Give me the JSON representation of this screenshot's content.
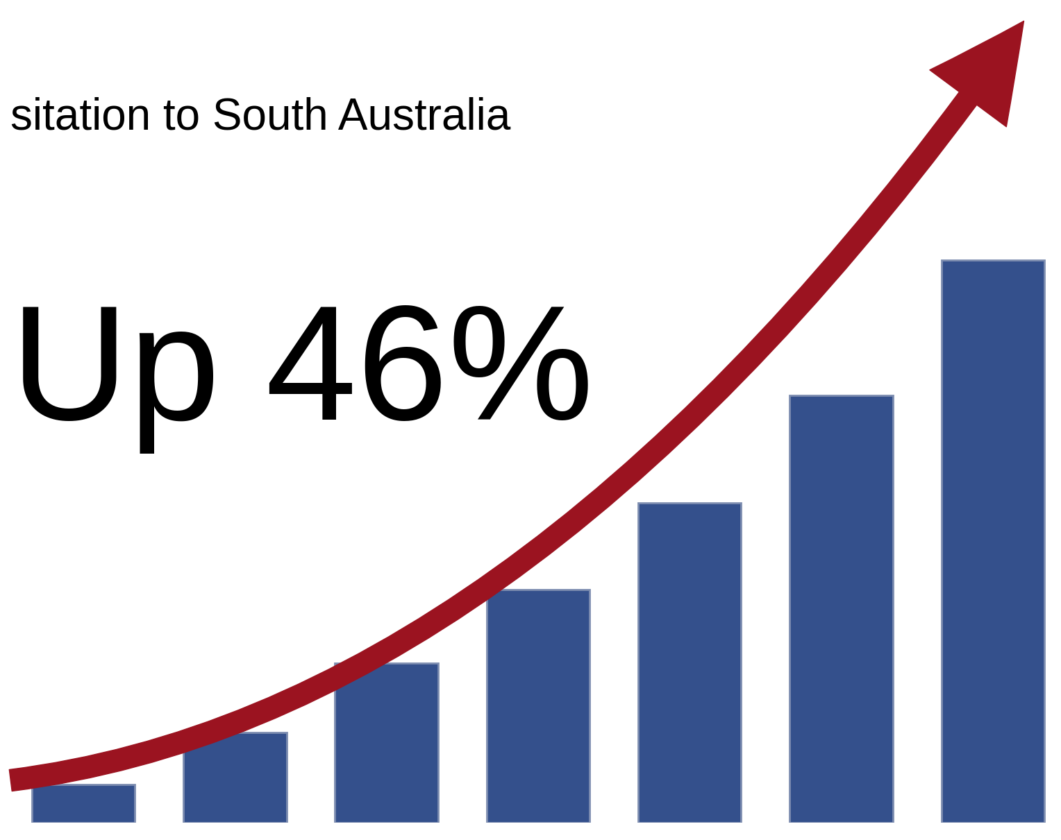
{
  "chart_data": {
    "type": "bar",
    "title": "sitation to South Australia",
    "annotations": [
      "Up 46%"
    ],
    "categories": [
      null,
      null,
      null,
      null,
      null,
      null,
      null
    ],
    "values": [
      56,
      133,
      235,
      343,
      471,
      629,
      829
    ],
    "color": "#34508c",
    "ylim": [
      0,
      1200
    ],
    "yticks": [
      0,
      1200
    ],
    "tick_labels": false
  }
}
